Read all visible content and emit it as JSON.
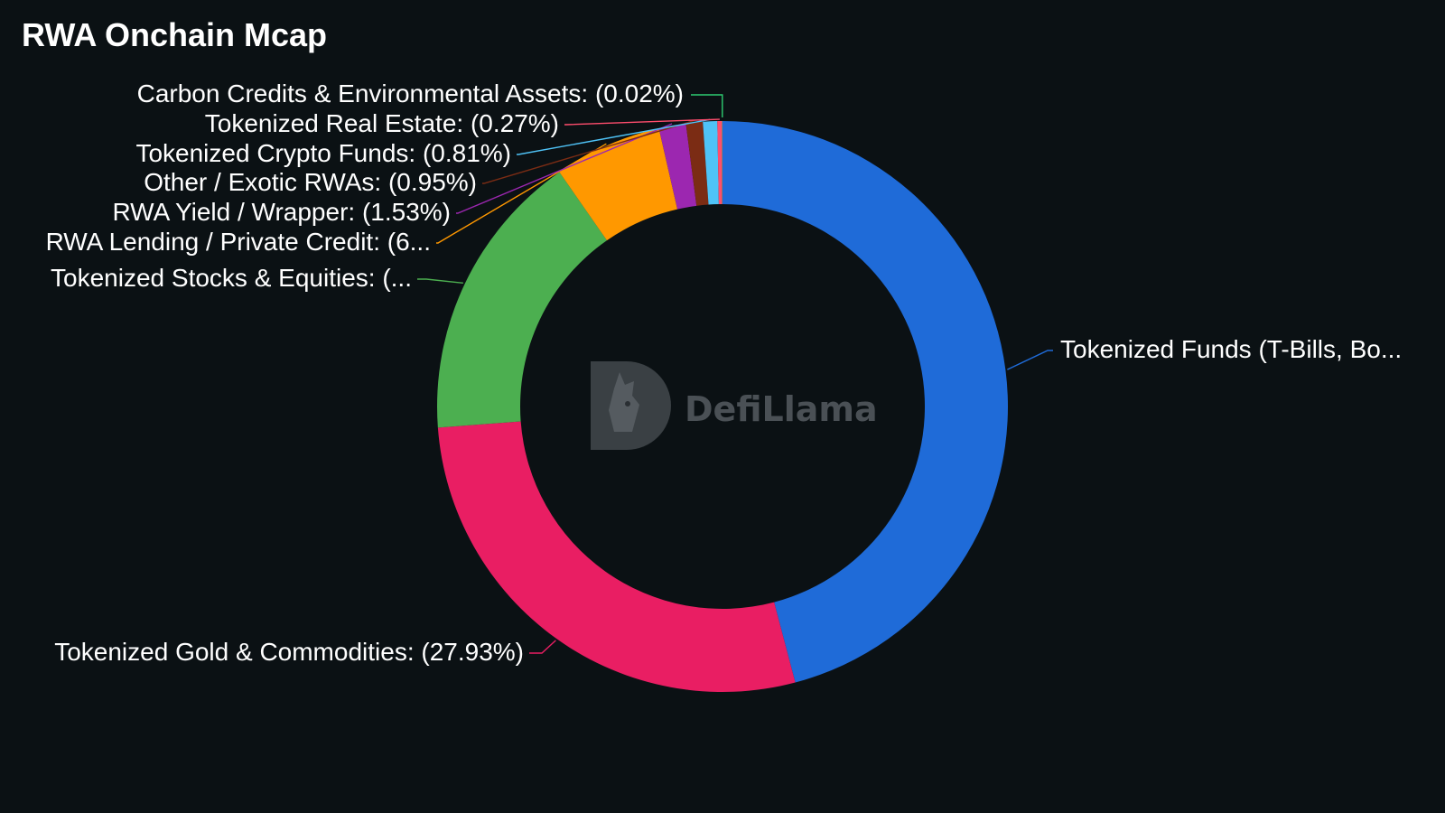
{
  "title": "RWA Onchain Mcap",
  "watermark": {
    "text": "DefiLlama",
    "icon": "llama-logo-icon"
  },
  "chart_data": {
    "type": "pie",
    "donut": true,
    "title": "RWA Onchain Mcap",
    "slices": [
      {
        "name": "Tokenized Funds (T-Bills, Bonds)",
        "value": 45.9,
        "color": "#1f6bd8",
        "label": "Tokenized Funds (T-Bills, Bo..."
      },
      {
        "name": "Tokenized Gold & Commodities",
        "value": 27.93,
        "color": "#e91e63",
        "label": "Tokenized Gold & Commodities: (27.93%)"
      },
      {
        "name": "Tokenized Stocks & Equities",
        "value": 16.5,
        "color": "#4caf50",
        "label": "Tokenized Stocks & Equities: (..."
      },
      {
        "name": "RWA Lending / Private Credit",
        "value": 6.1,
        "color": "#ff9800",
        "label": "RWA Lending / Private Credit: (6..."
      },
      {
        "name": "RWA Yield / Wrapper",
        "value": 1.53,
        "color": "#9c27b0",
        "label": "RWA Yield / Wrapper: (1.53%)"
      },
      {
        "name": "Other / Exotic RWAs",
        "value": 0.95,
        "color": "#7b2c14",
        "label": "Other / Exotic RWAs: (0.95%)"
      },
      {
        "name": "Tokenized Crypto Funds",
        "value": 0.81,
        "color": "#4fc3f7",
        "label": "Tokenized Crypto Funds: (0.81%)"
      },
      {
        "name": "Tokenized Real Estate",
        "value": 0.27,
        "color": "#ff4d6d",
        "label": "Tokenized Real Estate: (0.27%)"
      },
      {
        "name": "Carbon Credits & Environmental Assets",
        "value": 0.02,
        "color": "#2ecc71",
        "label": "Carbon Credits & Environmental Assets: (0.02%)"
      }
    ]
  }
}
